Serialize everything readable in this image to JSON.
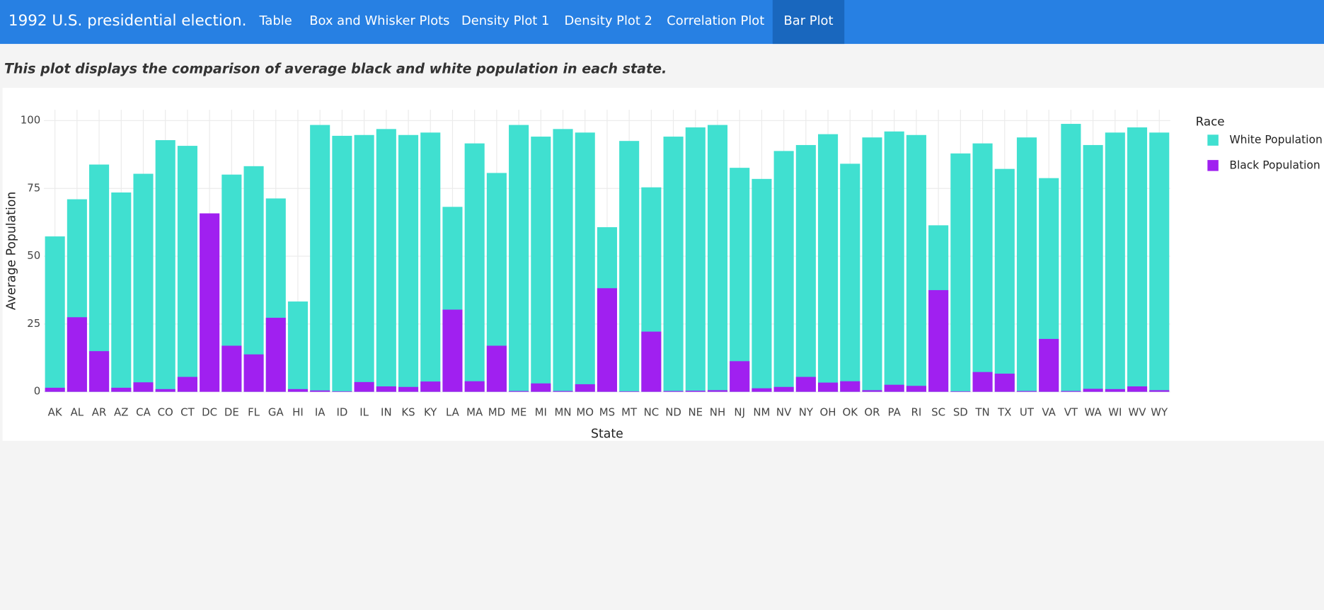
{
  "nav": {
    "brand": "1992 U.S. presidential election.",
    "tabs": [
      "Table",
      "Box and Whisker Plots",
      "Density Plot 1",
      "Density Plot 2",
      "Correlation Plot",
      "Bar Plot"
    ],
    "active": 5
  },
  "description": "This plot displays the comparison of average black and white population in each state.",
  "chart_data": {
    "type": "bar",
    "barmode": "overlay",
    "x_label": "State",
    "y_label": "Average Population",
    "legend_title": "Race",
    "legend_position": "right",
    "grid": true,
    "categories": [
      "AK",
      "AL",
      "AR",
      "AZ",
      "CA",
      "CO",
      "CT",
      "DC",
      "DE",
      "FL",
      "GA",
      "HI",
      "IA",
      "ID",
      "IL",
      "IN",
      "KS",
      "KY",
      "LA",
      "MA",
      "MD",
      "ME",
      "MI",
      "MN",
      "MO",
      "MS",
      "MT",
      "NC",
      "ND",
      "NE",
      "NH",
      "NJ",
      "NM",
      "NV",
      "NY",
      "OH",
      "OK",
      "OR",
      "PA",
      "RI",
      "SC",
      "SD",
      "TN",
      "TX",
      "UT",
      "VA",
      "VT",
      "WA",
      "WI",
      "WV",
      "WY"
    ],
    "series": [
      {
        "name": "White Population",
        "color": "#40e0d0",
        "values": [
          57.3,
          71.0,
          83.8,
          73.5,
          80.4,
          92.8,
          90.7,
          null,
          80.1,
          83.2,
          71.3,
          33.3,
          98.4,
          94.4,
          94.7,
          96.9,
          94.7,
          95.6,
          68.2,
          91.6,
          80.7,
          98.4,
          94.1,
          96.9,
          95.6,
          60.7,
          92.5,
          75.4,
          94.1,
          97.5,
          98.4,
          82.6,
          78.5,
          88.8,
          91.0,
          95.0,
          84.1,
          93.8,
          96.0,
          94.7,
          61.4,
          87.9,
          91.6,
          82.2,
          93.8,
          78.8,
          98.8,
          91.0,
          95.6,
          97.5,
          95.6
        ]
      },
      {
        "name": "Black Population",
        "color": "#a020f0",
        "values": [
          1.5,
          27.5,
          15.0,
          1.5,
          3.5,
          1.0,
          5.5,
          65.8,
          17.0,
          13.8,
          27.3,
          1.0,
          0.5,
          0.2,
          3.6,
          2.0,
          1.8,
          3.8,
          30.3,
          3.9,
          17.0,
          0.3,
          3.1,
          0.3,
          2.8,
          38.2,
          0.2,
          22.2,
          0.3,
          0.4,
          0.6,
          11.3,
          1.3,
          1.8,
          5.5,
          3.4,
          3.9,
          0.6,
          2.6,
          2.2,
          37.5,
          0.2,
          7.3,
          6.7,
          0.3,
          19.5,
          0.3,
          1.1,
          1.0,
          2.0,
          0.6
        ]
      }
    ],
    "ylim": [
      0,
      104
    ],
    "yticks": [
      0,
      25,
      50,
      75,
      100
    ]
  }
}
